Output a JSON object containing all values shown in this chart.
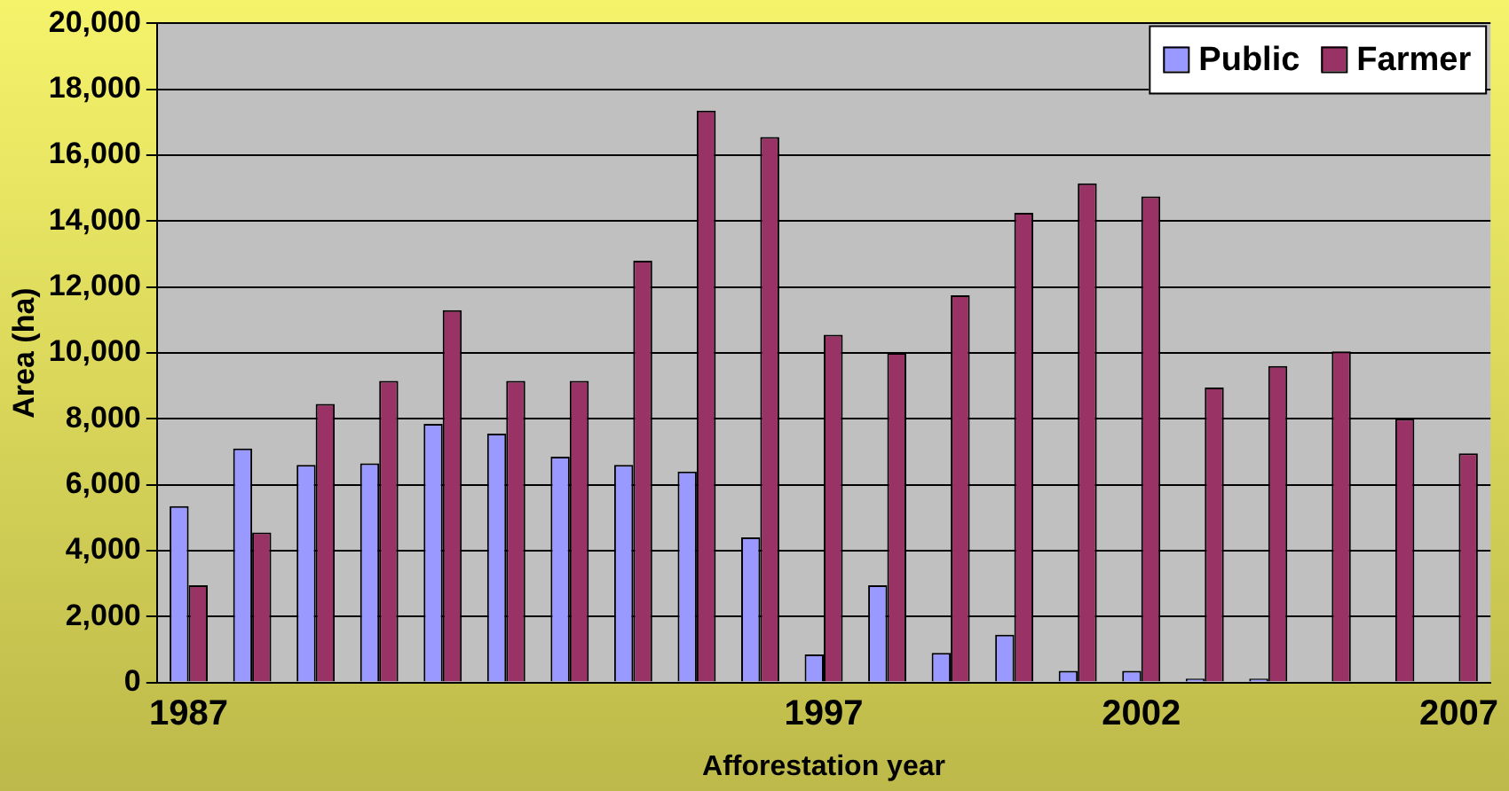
{
  "chart_data": {
    "type": "bar",
    "xlabel": "Afforestation year",
    "ylabel": "Area (ha)",
    "categories": [
      "1987",
      null,
      null,
      null,
      null,
      null,
      null,
      null,
      null,
      null,
      "1997",
      null,
      null,
      null,
      null,
      "2002",
      null,
      null,
      null,
      null,
      "2007"
    ],
    "series": [
      {
        "name": "Public",
        "color": "#9999ff",
        "values": [
          5350,
          7100,
          6600,
          6650,
          7850,
          7550,
          6850,
          6600,
          6400,
          4400,
          850,
          2950,
          900,
          1450,
          350,
          350,
          120,
          120,
          null,
          0,
          0
        ]
      },
      {
        "name": "Farmer",
        "color": "#993366",
        "values": [
          2950,
          4550,
          8450,
          9150,
          11300,
          9150,
          9150,
          12800,
          17350,
          16550,
          10550,
          10000,
          11750,
          14250,
          15150,
          14750,
          8950,
          9600,
          10050,
          8000,
          6950
        ]
      }
    ],
    "ylim": [
      0,
      20000
    ],
    "yticks": [
      {
        "value": 0,
        "label": "0"
      },
      {
        "value": 2000,
        "label": "2,000"
      },
      {
        "value": 4000,
        "label": "4,000"
      },
      {
        "value": 6000,
        "label": "6,000"
      },
      {
        "value": 8000,
        "label": "8,000"
      },
      {
        "value": 10000,
        "label": "10,000"
      },
      {
        "value": 12000,
        "label": "12,000"
      },
      {
        "value": 14000,
        "label": "14,000"
      },
      {
        "value": 16000,
        "label": "16,000"
      },
      {
        "value": 18000,
        "label": "18,000"
      },
      {
        "value": 20000,
        "label": "20,000"
      }
    ],
    "grid": "y",
    "legend": "top right"
  }
}
